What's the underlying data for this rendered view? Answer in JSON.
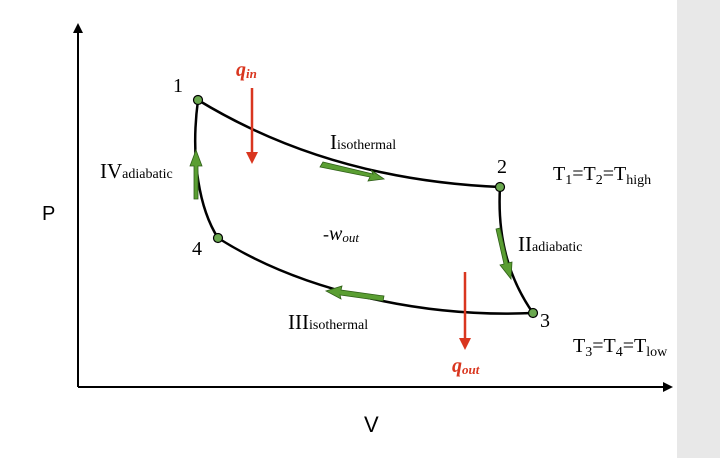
{
  "axes": {
    "y_label": "P",
    "x_label": "V"
  },
  "points": {
    "p1": "1",
    "p2": "2",
    "p3": "3",
    "p4": "4"
  },
  "processes": {
    "I": {
      "numeral": "I",
      "sub": "isothermal"
    },
    "II": {
      "numeral": "II",
      "sub": "adiabatic"
    },
    "III": {
      "numeral": "III",
      "sub": "isothermal"
    },
    "IV": {
      "numeral": "IV",
      "sub": "adiabatic"
    }
  },
  "heat": {
    "q_in": {
      "symbol": "q",
      "sub": "in"
    },
    "q_out": {
      "symbol": "q",
      "sub": "out"
    }
  },
  "work": {
    "prefix": "-",
    "symbol": "w",
    "sub": "out"
  },
  "temps": {
    "high": {
      "t1": "T",
      "s1": "1",
      "eq1": "=",
      "t2": "T",
      "s2": "2",
      "eq2": "=",
      "t3": "T",
      "s3": "high"
    },
    "low": {
      "t1": "T",
      "s1": "3",
      "eq1": "=",
      "t2": "T",
      "s2": "4",
      "eq2": "=",
      "t3": "T",
      "s3": "low"
    }
  },
  "colors": {
    "curve": "#000000",
    "arrow_green": "#5a9e32",
    "heat_red": "#d9361f",
    "point_fill": "#6aa84f",
    "side_panel": "#e8e8e8"
  }
}
